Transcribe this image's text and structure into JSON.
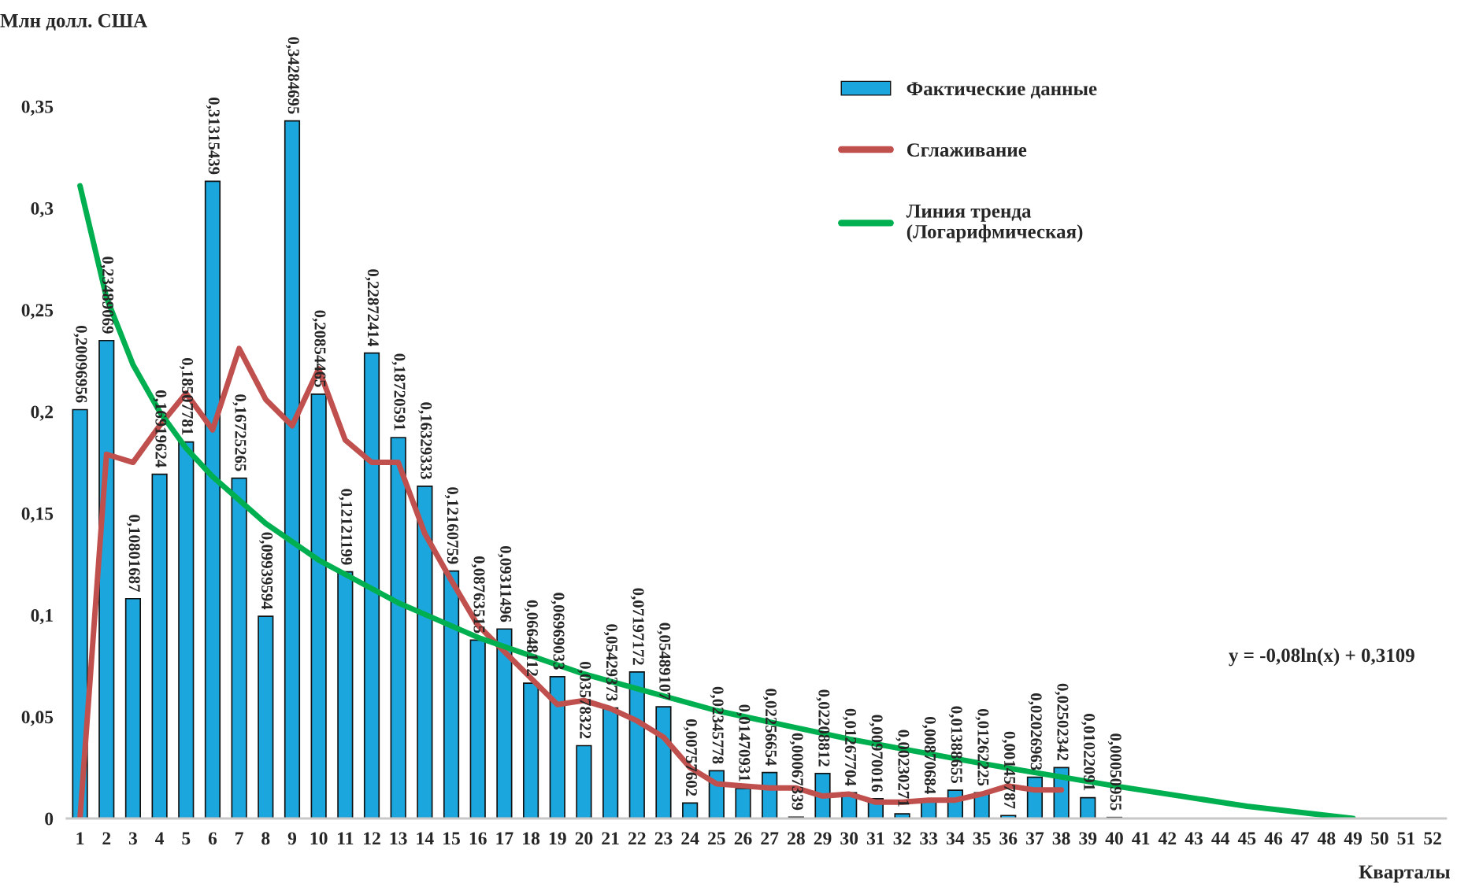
{
  "chart_data": {
    "type": "bar",
    "xlabel": "Кварталы",
    "ylabel": "Млн долл. США",
    "x": [
      1,
      2,
      3,
      4,
      5,
      6,
      7,
      8,
      9,
      10,
      11,
      12,
      13,
      14,
      15,
      16,
      17,
      18,
      19,
      20,
      21,
      22,
      23,
      24,
      25,
      26,
      27,
      28,
      29,
      30,
      31,
      32,
      33,
      34,
      35,
      36,
      37,
      38,
      39,
      40
    ],
    "xlim": [
      0.5,
      52.5
    ],
    "xticks": [
      1,
      2,
      3,
      4,
      5,
      6,
      7,
      8,
      9,
      10,
      11,
      12,
      13,
      14,
      15,
      16,
      17,
      18,
      19,
      20,
      21,
      22,
      23,
      24,
      25,
      26,
      27,
      28,
      29,
      30,
      31,
      32,
      33,
      34,
      35,
      36,
      37,
      38,
      39,
      40,
      41,
      42,
      43,
      44,
      45,
      46,
      47,
      48,
      49,
      50,
      51,
      52
    ],
    "ylim": [
      0,
      0.35
    ],
    "yticks": [
      0,
      {
        "value": 0.05,
        "label": "0,05"
      },
      {
        "value": 0.1,
        "label": "0,1"
      },
      {
        "value": 0.15,
        "label": "0,15"
      },
      {
        "value": 0.2,
        "label": "0,2"
      },
      {
        "value": 0.25,
        "label": "0,25"
      },
      {
        "value": 0.3,
        "label": "0,3"
      },
      {
        "value": 0.35,
        "label": "0,35"
      }
    ],
    "series": [
      {
        "name": "Фактические данные",
        "color": "#1ba7dd",
        "values": [
          0.20096956,
          0.23489069,
          0.10801687,
          0.16919624,
          0.18507781,
          0.31315439,
          0.16725265,
          0.09939594,
          0.34284695,
          0.20854465,
          0.12121199,
          0.22872414,
          0.18720591,
          0.16329333,
          0.12160759,
          0.08763515,
          0.09311496,
          0.06648112,
          0.06969033,
          0.03578322,
          0.05429373,
          0.07197172,
          0.05489107,
          0.00757602,
          0.02345778,
          0.01470931,
          0.02256654,
          0.00067339,
          0.02208812,
          0.01267704,
          0.00970016,
          0.00230271,
          0.00870684,
          0.01388655,
          0.01262225,
          0.00145787,
          0.02026963,
          0.02502342,
          0.01022091,
          0.00050955
        ],
        "value_labels": [
          "0,20096956",
          "0,23489069",
          "0,10801687",
          "0,16919624",
          "0,18507781",
          "0,31315439",
          "0,16725265",
          "0,09939594",
          "0,34284695",
          "0,20854465",
          "0,12121199",
          "0,22872414",
          "0,18720591",
          "0,16329333",
          "0,12160759",
          "0,08763515",
          "0,09311496",
          "0,06648112",
          "0,06969033",
          "0,03578322",
          "0,05429373",
          "0,07197172",
          "0,05489107",
          "0,00757602",
          "0,02345778",
          "0,01470931",
          "0,02256654",
          "0,00067339",
          "0,02208812",
          "0,01267704",
          "0,00970016",
          "0,00230271",
          "0,00870684",
          "0,01388655",
          "0,01262225",
          "0,00145787",
          "0,02026963",
          "0,02502342",
          "0,01022091",
          "0,00050955"
        ]
      },
      {
        "name": "Сглаживание",
        "type": "line",
        "color": "#c0504d",
        "x": [
          1,
          2,
          3,
          4,
          5,
          6,
          7,
          8,
          9,
          10,
          11,
          12,
          13,
          14,
          15,
          16,
          17,
          18,
          19,
          20,
          21,
          22,
          23,
          24,
          25,
          26,
          27,
          28,
          29,
          30,
          31,
          32,
          33,
          34,
          35,
          36,
          37,
          38
        ],
        "values": [
          0,
          0.179,
          0.175,
          0.193,
          0.209,
          0.191,
          0.231,
          0.206,
          0.193,
          0.221,
          0.186,
          0.175,
          0.175,
          0.14,
          0.117,
          0.095,
          0.082,
          0.069,
          0.056,
          0.058,
          0.054,
          0.048,
          0.04,
          0.025,
          0.017,
          0.016,
          0.015,
          0.015,
          0.011,
          0.012,
          0.008,
          0.008,
          0.009,
          0.009,
          0.012,
          0.016,
          0.014,
          0.014
        ]
      },
      {
        "name": "Линия тренда\n(Логарифмическая)",
        "type": "line",
        "color": "#00b050",
        "x": [
          1,
          2,
          3,
          4,
          5,
          6,
          8,
          10,
          13,
          16,
          20,
          25,
          30,
          35,
          40,
          45,
          49
        ],
        "values": [
          0.311,
          0.256,
          0.223,
          0.2,
          0.182,
          0.168,
          0.145,
          0.127,
          0.106,
          0.089,
          0.071,
          0.053,
          0.039,
          0.027,
          0.016,
          0.006,
          0.0
        ]
      }
    ],
    "legend": "top right",
    "annotations": [
      "y = -0,08ln(x) + 0,3109"
    ]
  }
}
